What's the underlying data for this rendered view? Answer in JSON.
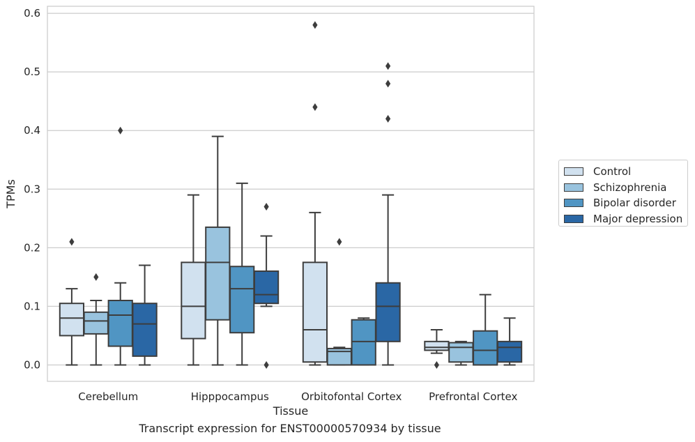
{
  "chart_data": {
    "type": "box",
    "title": "",
    "xlabel": "Tissue",
    "ylabel": "TPMs",
    "ylim": [
      -0.028,
      0.612
    ],
    "yticks": [
      0.0,
      0.1,
      0.2,
      0.3,
      0.4,
      0.5,
      0.6
    ],
    "ytick_labels": [
      "0.0",
      "0.1",
      "0.2",
      "0.3",
      "0.4",
      "0.5",
      "0.6"
    ],
    "grid": "horizontal",
    "legend_position": "right",
    "categories": [
      "Cerebellum",
      "Hipppocampus",
      "Orbitofontal Cortex",
      "Prefrontal Cortex"
    ],
    "series": [
      {
        "name": "Control",
        "color": "#d1e1ef",
        "boxes": [
          {
            "whislo": 0.0,
            "q1": 0.05,
            "med": 0.08,
            "q3": 0.105,
            "whishi": 0.13,
            "fliers": [
              0.21
            ]
          },
          {
            "whislo": 0.0,
            "q1": 0.045,
            "med": 0.1,
            "q3": 0.175,
            "whishi": 0.29,
            "fliers": []
          },
          {
            "whislo": 0.0,
            "q1": 0.005,
            "med": 0.06,
            "q3": 0.175,
            "whishi": 0.26,
            "fliers": [
              0.44,
              0.58
            ]
          },
          {
            "whislo": 0.02,
            "q1": 0.025,
            "med": 0.03,
            "q3": 0.04,
            "whishi": 0.06,
            "fliers": [
              0.0
            ]
          }
        ]
      },
      {
        "name": "Schizophrenia",
        "color": "#99c3de",
        "boxes": [
          {
            "whislo": 0.0,
            "q1": 0.053,
            "med": 0.075,
            "q3": 0.09,
            "whishi": 0.11,
            "fliers": [
              0.15
            ]
          },
          {
            "whislo": 0.0,
            "q1": 0.077,
            "med": 0.175,
            "q3": 0.235,
            "whishi": 0.39,
            "fliers": []
          },
          {
            "whislo": 0.0,
            "q1": 0.0,
            "med": 0.023,
            "q3": 0.028,
            "whishi": 0.03,
            "fliers": [
              0.21
            ]
          },
          {
            "whislo": 0.0,
            "q1": 0.005,
            "med": 0.03,
            "q3": 0.038,
            "whishi": 0.04,
            "fliers": []
          }
        ]
      },
      {
        "name": "Bipolar disorder",
        "color": "#5095c3",
        "boxes": [
          {
            "whislo": 0.0,
            "q1": 0.032,
            "med": 0.085,
            "q3": 0.11,
            "whishi": 0.14,
            "fliers": [
              0.4
            ]
          },
          {
            "whislo": 0.0,
            "q1": 0.055,
            "med": 0.13,
            "q3": 0.168,
            "whishi": 0.31,
            "fliers": []
          },
          {
            "whislo": 0.0,
            "q1": 0.0,
            "med": 0.04,
            "q3": 0.077,
            "whishi": 0.08,
            "fliers": []
          },
          {
            "whislo": 0.0,
            "q1": 0.0,
            "med": 0.025,
            "q3": 0.058,
            "whishi": 0.12,
            "fliers": []
          }
        ]
      },
      {
        "name": "Major depression",
        "color": "#2a67a5",
        "boxes": [
          {
            "whislo": 0.0,
            "q1": 0.015,
            "med": 0.07,
            "q3": 0.105,
            "whishi": 0.17,
            "fliers": []
          },
          {
            "whislo": 0.1,
            "q1": 0.105,
            "med": 0.12,
            "q3": 0.16,
            "whishi": 0.22,
            "fliers": [
              0.27,
              0.0
            ]
          },
          {
            "whislo": 0.0,
            "q1": 0.04,
            "med": 0.1,
            "q3": 0.14,
            "whishi": 0.29,
            "fliers": [
              0.42,
              0.48,
              0.51
            ]
          },
          {
            "whislo": 0.0,
            "q1": 0.005,
            "med": 0.03,
            "q3": 0.04,
            "whishi": 0.08,
            "fliers": []
          }
        ]
      }
    ]
  },
  "caption": "Transcript expression for ENST00000570934 by tissue"
}
